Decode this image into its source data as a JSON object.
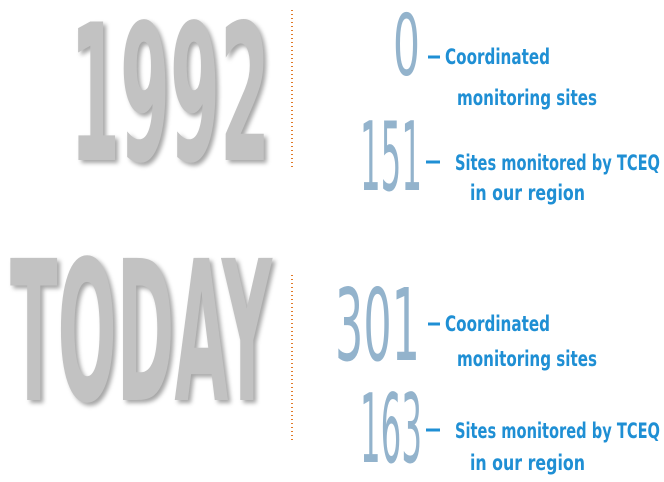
{
  "sections": [
    {
      "period": "1992",
      "stats": [
        {
          "number": 0,
          "label": [
            "Coordinated",
            "monitoring sites"
          ]
        },
        {
          "number": 151,
          "label": [
            "Sites monitored by TCEQ",
            "in our region"
          ]
        }
      ]
    },
    {
      "period": "TODAY",
      "stats": [
        {
          "number": 301,
          "label": [
            "Coordinated",
            "monitoring sites"
          ]
        },
        {
          "number": 163,
          "label": [
            "Sites monitored by TCEQ",
            "in our region"
          ]
        }
      ]
    }
  ]
}
